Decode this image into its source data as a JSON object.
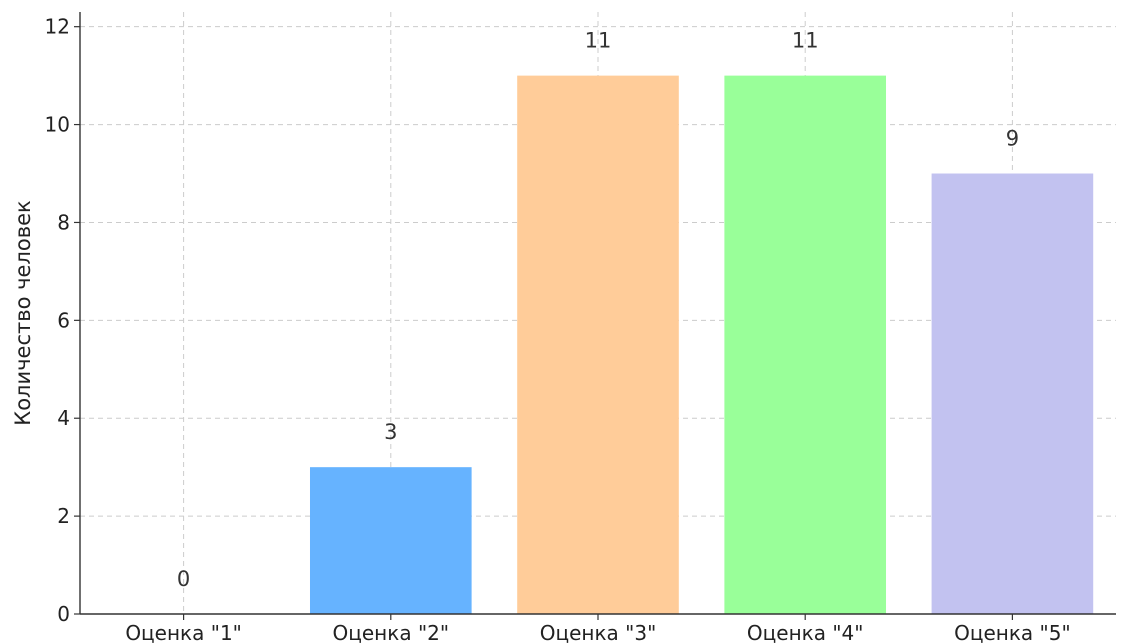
{
  "chart_data": {
    "type": "bar",
    "categories": [
      "Оценка \"1\"",
      "Оценка \"2\"",
      "Оценка \"3\"",
      "Оценка \"4\"",
      "Оценка \"5\""
    ],
    "values": [
      0,
      3,
      11,
      11,
      9
    ],
    "value_labels": [
      "0",
      "3",
      "11",
      "11",
      "9"
    ],
    "colors": [
      "#ff9999",
      "#66b3ff",
      "#ffcc99",
      "#99ff99",
      "#c2c2f0"
    ],
    "title": "",
    "xlabel": "",
    "ylabel": "Количество человек",
    "ylim": [
      0,
      12.3
    ],
    "yticks": [
      0,
      2,
      4,
      6,
      8,
      10,
      12
    ],
    "grid": true
  }
}
